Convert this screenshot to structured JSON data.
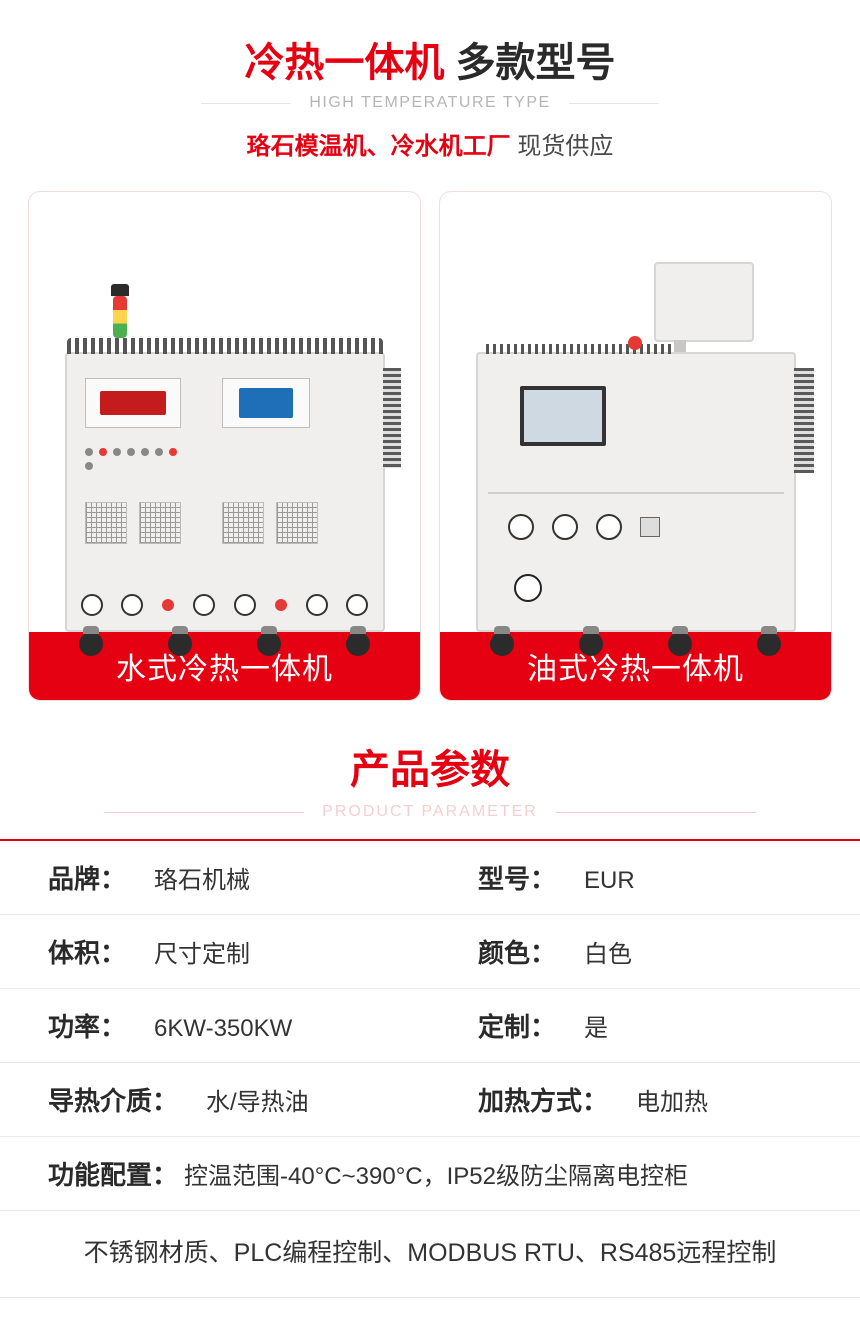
{
  "header": {
    "title_red": "冷热一体机",
    "title_dark": "多款型号",
    "subtitle_en": "HIGH TEMPERATURE TYPE",
    "subtext_red": "珞石模温机、冷水机工厂",
    "subtext_dark": "现货供应"
  },
  "products": [
    {
      "label": "水式冷热一体机",
      "bar_color": "#e50012"
    },
    {
      "label": "油式冷热一体机",
      "bar_color": "#e50012"
    }
  ],
  "params_section": {
    "title": "产品参数",
    "subtitle_en": "PRODUCT PARAMETER",
    "border_color": "#e50012"
  },
  "specs": {
    "brand": {
      "label": "品牌：",
      "value": "珞石机械"
    },
    "model": {
      "label": "型号：",
      "value": "EUR"
    },
    "volume": {
      "label": "体积：",
      "value": "尺寸定制"
    },
    "color": {
      "label": "颜色：",
      "value": "白色"
    },
    "power": {
      "label": "功率：",
      "value": "6KW-350KW"
    },
    "custom": {
      "label": "定制：",
      "value": "是"
    },
    "medium": {
      "label": "导热介质：",
      "value": "水/导热油"
    },
    "heating": {
      "label": "加热方式：",
      "value": "电加热"
    },
    "config": {
      "label": "功能配置：",
      "value": "控温范围-40°C~390°C，IP52级防尘隔离电控柜"
    }
  },
  "footer_text": "不锈钢材质、PLC编程控制、MODBUS RTU、RS485远程控制",
  "colors": {
    "accent_red": "#e50012",
    "text_dark": "#2a2a2a",
    "text_body": "#333333",
    "subtitle_gray": "#b5b5b5",
    "subtitle_pink": "#f4cfd1",
    "divider": "#eee8e8",
    "machine_body": "#f0efee",
    "machine_border": "#d8d6d4"
  },
  "typography": {
    "title_fontsize": 40,
    "label_fontsize": 26,
    "value_fontsize": 24,
    "product_label_fontsize": 30
  }
}
